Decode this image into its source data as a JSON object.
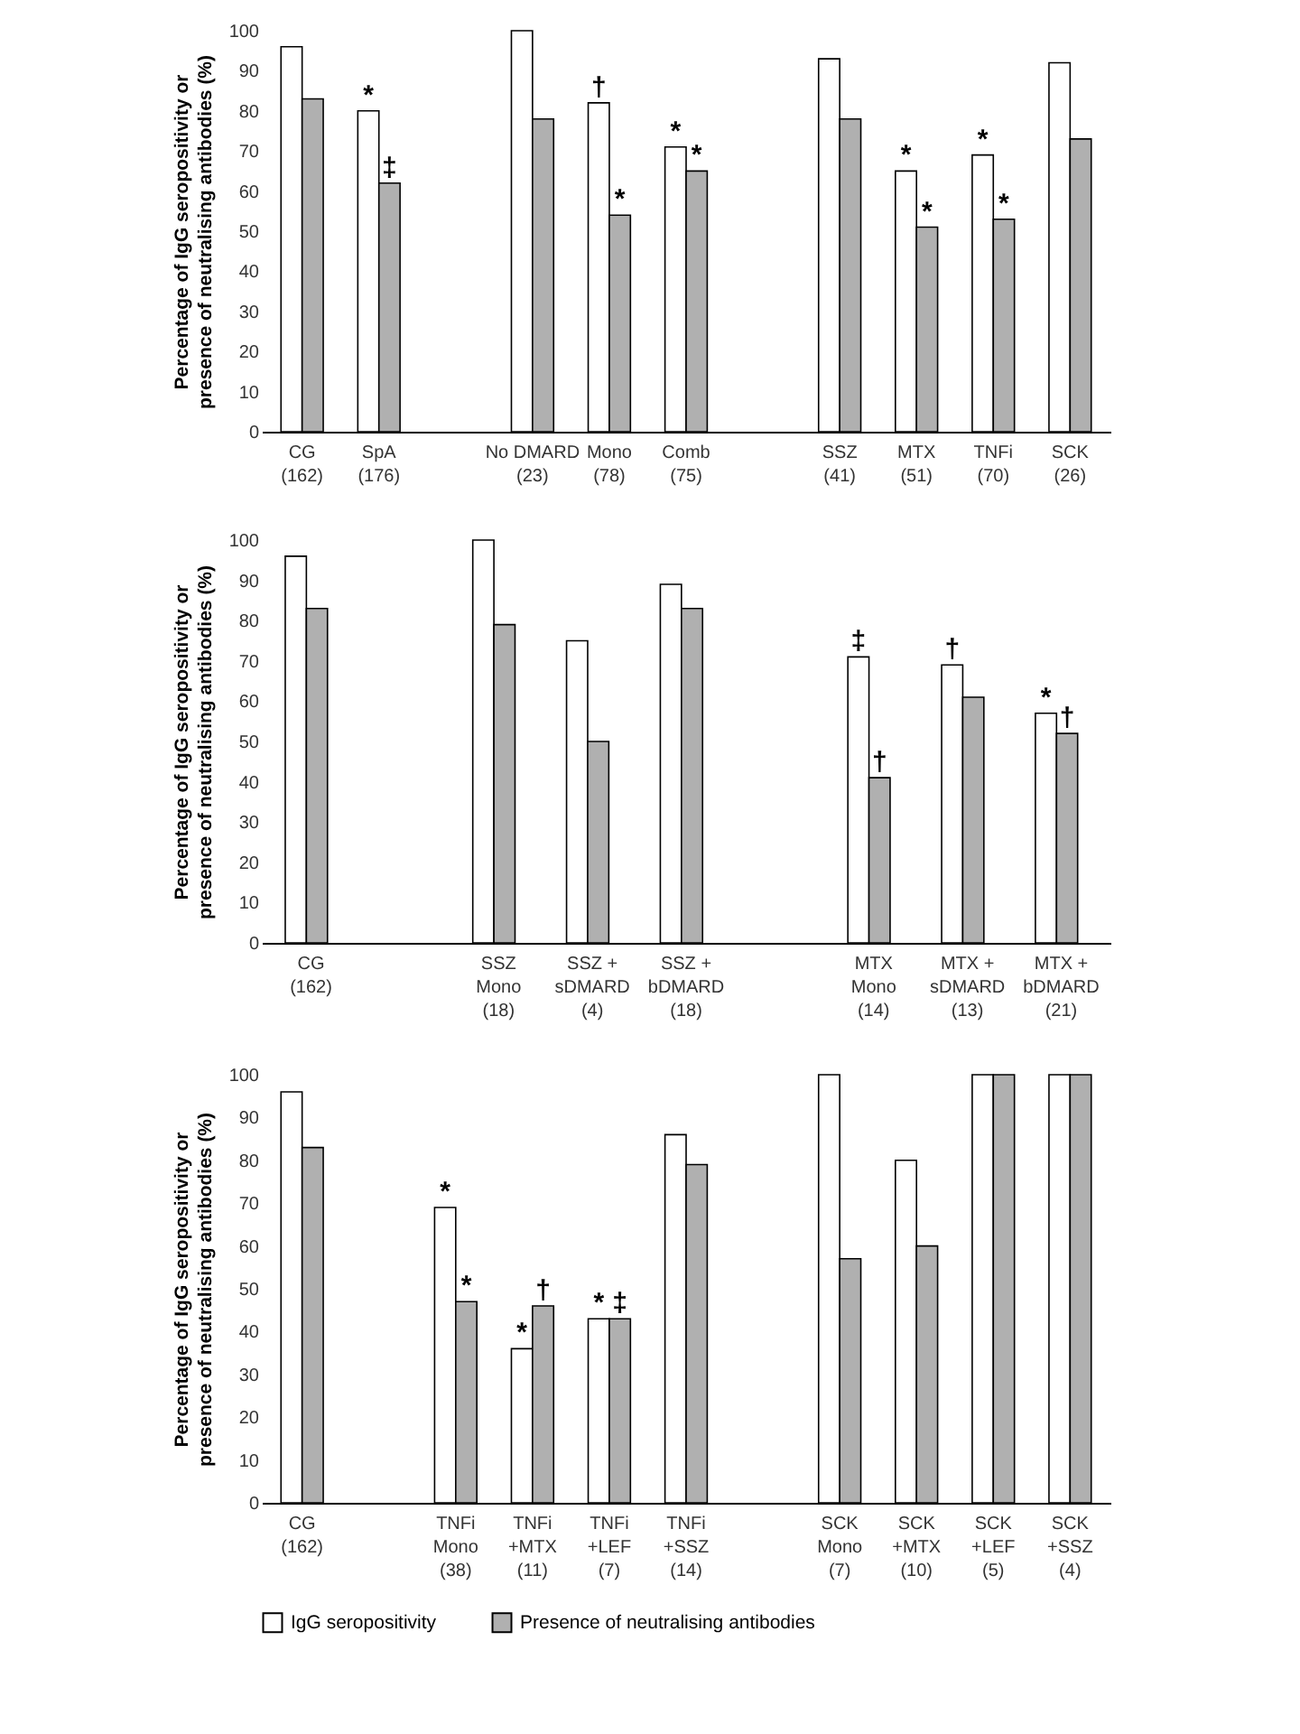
{
  "chart_data": [
    {
      "type": "bar",
      "ylabel": "Percentage of IgG seropositivity or\npresence of neutralising antibodies (%)",
      "categories": [
        "CG\n(162)",
        "SpA\n(176)",
        null,
        "No DMARD\n(23)",
        "Mono\n(78)",
        "Comb\n(75)",
        null,
        "SSZ\n(41)",
        "MTX\n(51)",
        "TNFi\n(70)",
        "SCK\n(26)"
      ],
      "series": [
        {
          "name": "IgG seropositivity",
          "color": "#ffffff",
          "values": [
            96,
            80,
            null,
            100,
            82,
            71,
            null,
            93,
            65,
            69,
            92
          ]
        },
        {
          "name": "Presence of neutralising antibodies",
          "color": "#b0b0b0",
          "values": [
            83,
            62,
            null,
            78,
            54,
            65,
            null,
            78,
            51,
            53,
            73
          ]
        }
      ],
      "ylim": [
        0,
        100
      ],
      "yticks": [
        0,
        10,
        20,
        30,
        40,
        50,
        60,
        70,
        80,
        90,
        100
      ],
      "grid": false,
      "legend": "bottom",
      "annotations": [
        {
          "text": "*",
          "x": "SpA\n(176)",
          "y": 80
        },
        {
          "text": "‡",
          "x": "SpA\n(176)",
          "y": 62
        },
        {
          "text": "†",
          "x": "Mono\n(78)",
          "y": 82
        },
        {
          "text": "*",
          "x": "Mono\n(78)",
          "y": 54
        },
        {
          "text": "*",
          "x": "Comb\n(75)",
          "y": 71
        },
        {
          "text": "*",
          "x": "Comb\n(75)",
          "y": 65
        },
        {
          "text": "*",
          "x": "MTX\n(51)",
          "y": 65
        },
        {
          "text": "*",
          "x": "MTX\n(51)",
          "y": 51
        },
        {
          "text": "*",
          "x": "TNFi\n(70)",
          "y": 69
        },
        {
          "text": "*",
          "x": "TNFi\n(70)",
          "y": 53
        }
      ]
    },
    {
      "type": "bar",
      "ylabel": "Percentage of IgG seropositivity or\npresence of neutralising antibodies (%)",
      "categories": [
        "CG\n(162)",
        null,
        "SSZ\nMono\n(18)",
        "SSZ +\nsDMARD\n(4)",
        "SSZ +\nbDMARD\n(18)",
        null,
        "MTX\nMono\n(14)",
        "MTX +\nsDMARD\n(13)",
        "MTX +\nbDMARD\n(21)"
      ],
      "series": [
        {
          "name": "IgG seropositivity",
          "color": "#ffffff",
          "values": [
            96,
            null,
            100,
            75,
            89,
            null,
            71,
            69,
            57
          ]
        },
        {
          "name": "Presence of neutralising antibodies",
          "color": "#b0b0b0",
          "values": [
            83,
            null,
            79,
            50,
            83,
            null,
            41,
            61,
            52
          ]
        }
      ],
      "ylim": [
        0,
        100
      ],
      "yticks": [
        0,
        10,
        20,
        30,
        40,
        50,
        60,
        70,
        80,
        90,
        100
      ],
      "grid": false,
      "legend": "bottom",
      "annotations": [
        {
          "text": "‡",
          "x": "MTX\nMono\n(14)",
          "y": 71
        },
        {
          "text": "†",
          "x": "MTX\nMono\n(14)",
          "y": 41
        },
        {
          "text": "†",
          "x": "MTX +\nsDMARD\n(13)",
          "y": 69
        },
        {
          "text": "*",
          "x": "MTX +\nbDMARD\n(21)",
          "y": 57
        },
        {
          "text": "†",
          "x": "MTX +\nbDMARD\n(21)",
          "y": 52
        }
      ]
    },
    {
      "type": "bar",
      "ylabel": "Percentage of IgG seropositivity or\npresence of neutralising antibodies (%)",
      "categories": [
        "CG\n(162)",
        null,
        "TNFi\nMono\n(38)",
        "TNFi\n+MTX\n(11)",
        "TNFi\n+LEF\n(7)",
        "TNFi\n+SSZ\n(14)",
        null,
        "SCK\nMono\n(7)",
        "SCK\n+MTX\n(10)",
        "SCK\n+LEF\n(5)",
        "SCK\n+SSZ\n(4)"
      ],
      "series": [
        {
          "name": "IgG seropositivity",
          "color": "#ffffff",
          "values": [
            96,
            null,
            69,
            36,
            43,
            86,
            null,
            100,
            80,
            100,
            100
          ]
        },
        {
          "name": "Presence of neutralising antibodies",
          "color": "#b0b0b0",
          "values": [
            83,
            null,
            47,
            46,
            43,
            79,
            null,
            57,
            60,
            100,
            100
          ]
        }
      ],
      "ylim": [
        0,
        100
      ],
      "yticks": [
        0,
        10,
        20,
        30,
        40,
        50,
        60,
        70,
        80,
        90,
        100
      ],
      "grid": false,
      "legend": "bottom",
      "annotations": [
        {
          "text": "*",
          "x": "TNFi\nMono\n(38)",
          "y": 69
        },
        {
          "text": "*",
          "x": "TNFi\nMono\n(38)",
          "y": 47
        },
        {
          "text": "*",
          "x": "TNFi\n+MTX\n(11)",
          "y": 36
        },
        {
          "text": "†",
          "x": "TNFi\n+MTX\n(11)",
          "y": 46
        },
        {
          "text": "*",
          "x": "TNFi\n+LEF\n(7)",
          "y": 43
        },
        {
          "text": "‡",
          "x": "TNFi\n+LEF\n(7)",
          "y": 43
        }
      ]
    }
  ]
}
